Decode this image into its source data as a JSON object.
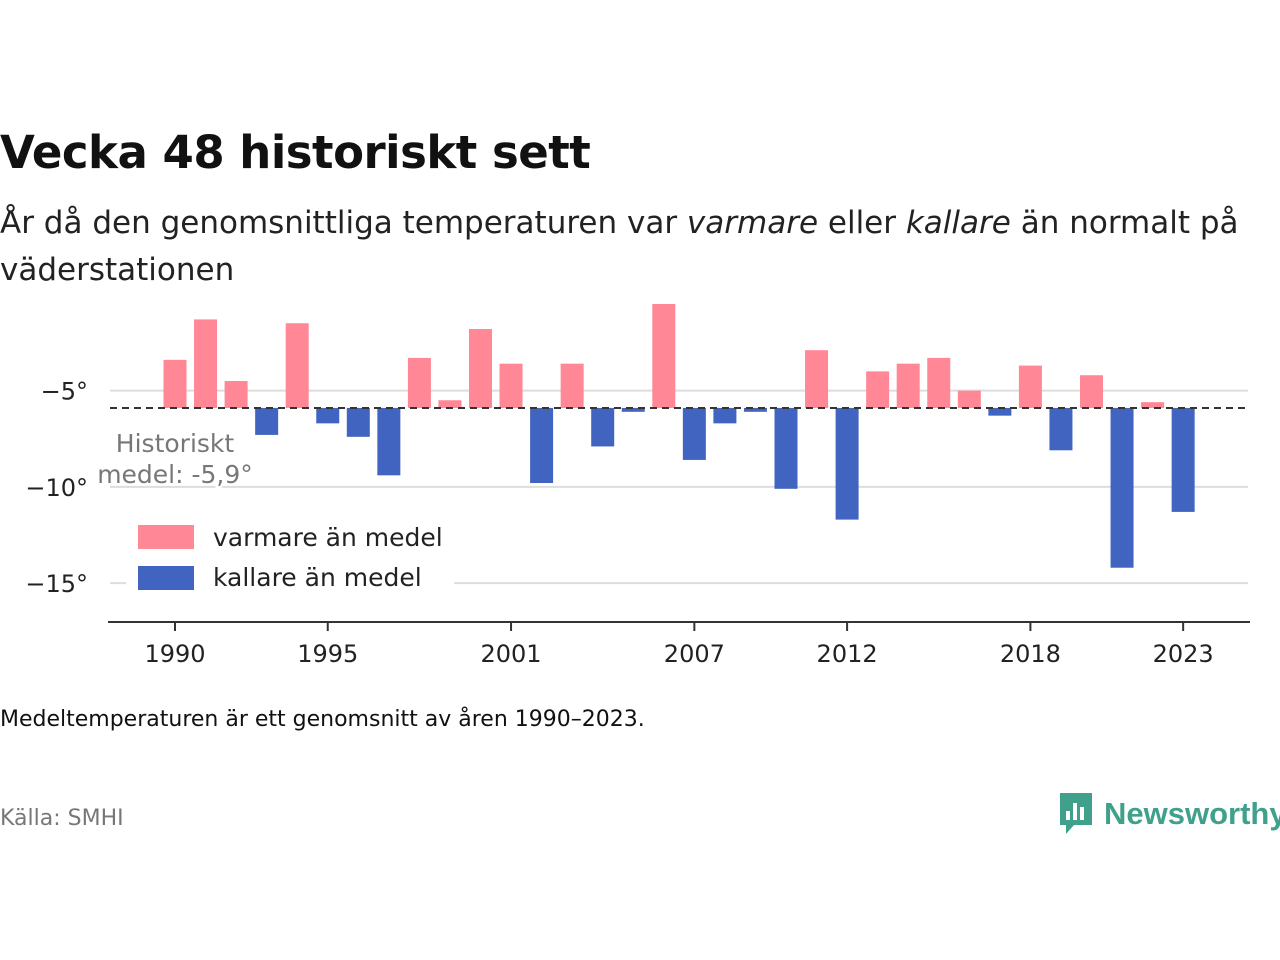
{
  "header": {
    "title": "Vecka 48 historiskt sett",
    "subtitle_parts": [
      "År då den genomsnittliga temperaturen var ",
      "varmare",
      " eller ",
      "kallare",
      " än normalt på väderstationen"
    ]
  },
  "footer": {
    "note": "Medeltemperaturen är ett genomsnitt av åren 1990–2023.",
    "source": "Källa: SMHI",
    "brand": "Newsworthy"
  },
  "colors": {
    "warm": "#ff8796",
    "cold": "#4064bf",
    "brand": "#3fa08c"
  },
  "chart_data": {
    "type": "bar",
    "baseline": -5.9,
    "baseline_label": [
      "Historiskt",
      "medel: -5,9°"
    ],
    "ylim": [
      -16.5,
      -0.5
    ],
    "yticks": [
      -5,
      -10,
      -15
    ],
    "ytick_labels": [
      "−5°",
      "−10°",
      "−15°"
    ],
    "xticks": [
      1990,
      1995,
      2001,
      2007,
      2012,
      2018,
      2023
    ],
    "grid": true,
    "legend": {
      "position": "bottom-left",
      "warm": "varmare än medel",
      "cold": "kallare än medel"
    },
    "x": [
      1990,
      1991,
      1992,
      1993,
      1994,
      1995,
      1996,
      1997,
      1998,
      1999,
      2000,
      2001,
      2002,
      2003,
      2004,
      2005,
      2006,
      2007,
      2008,
      2009,
      2010,
      2011,
      2012,
      2013,
      2014,
      2015,
      2016,
      2017,
      2018,
      2019,
      2020,
      2021,
      2022,
      2023
    ],
    "values": [
      -3.4,
      -1.3,
      -4.5,
      -7.3,
      -1.5,
      -6.7,
      -7.4,
      -9.4,
      -3.3,
      -5.5,
      -1.8,
      -3.6,
      -9.8,
      -3.6,
      -7.9,
      -6.1,
      -0.5,
      -8.6,
      -6.7,
      -6.1,
      -10.1,
      -2.9,
      -11.7,
      -4.0,
      -3.6,
      -3.3,
      -5.0,
      -6.3,
      -3.7,
      -8.1,
      -4.2,
      -14.2,
      -5.6,
      -11.3
    ]
  }
}
